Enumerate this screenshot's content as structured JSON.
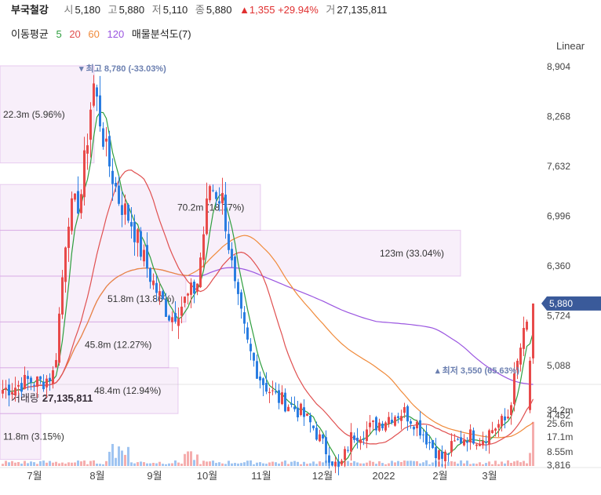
{
  "header": {
    "name": "부국철강",
    "open_label": "시",
    "open": "5,180",
    "high_label": "고",
    "high": "5,880",
    "low_label": "저",
    "low": "5,110",
    "close_label": "종",
    "close": "5,880",
    "change": "▲1,355 +29.94%",
    "volume_label": "거",
    "volume": "27,135,811"
  },
  "indicators": {
    "label": "이동평균",
    "ma": [
      {
        "period": "5",
        "color": "#2e9e3e"
      },
      {
        "period": "20",
        "color": "#e05050"
      },
      {
        "period": "60",
        "color": "#f08a3a"
      },
      {
        "period": "120",
        "color": "#9a55e0"
      }
    ],
    "profile_label": "매물분석도(7)"
  },
  "scale_mode": "Linear",
  "colors": {
    "up": "#e84a4a",
    "down": "#2a7de1",
    "profile": "#c27ad6",
    "price_tag": "#3a5a9a"
  },
  "chart_data": {
    "type": "candlestick",
    "y_ticks": [
      "8,904",
      "8,268",
      "7,632",
      "6,996",
      "6,360",
      "5,724",
      "5,088",
      "4,452",
      "3,816"
    ],
    "x_ticks": [
      "7월",
      "8월",
      "9월",
      "10월",
      "11월",
      "12월",
      "2022",
      "2월",
      "3월"
    ],
    "current_price": "5,880",
    "high_marker": "최고 8,780 (-33.03%)",
    "low_marker": "최저 3,550 (65.63%)",
    "volume_profile": [
      {
        "label": "22.3m (5.96%)",
        "price_lo": 7675,
        "price_hi": 8915
      },
      {
        "label": "70.2m (18.77%)",
        "price_lo": 6815,
        "price_hi": 7400
      },
      {
        "label": "123m (33.04%)",
        "price_lo": 6230,
        "price_hi": 6815
      },
      {
        "label": "51.8m (13.86%)",
        "price_lo": 5645,
        "price_hi": 6230
      },
      {
        "label": "45.8m (12.27%)",
        "price_lo": 5060,
        "price_hi": 5645
      },
      {
        "label": "48.4m (12.94%)",
        "price_lo": 4475,
        "price_hi": 5060
      },
      {
        "label": "11.8m (3.15%)",
        "price_lo": 3890,
        "price_hi": 4475
      }
    ],
    "volume": {
      "title": "거래량",
      "value": "27,135,811",
      "y_ticks": [
        "34.2m",
        "25.6m",
        "17.1m",
        "8.55m"
      ]
    },
    "ohlc_anchor_closes": [
      4780,
      4820,
      4900,
      4870,
      5000,
      7000,
      7200,
      8700,
      7800,
      7200,
      6900,
      6400,
      6000,
      5700,
      5900,
      6100,
      7400,
      7200,
      6000,
      5300,
      4900,
      4700,
      4600,
      4500,
      4300,
      4000,
      3750,
      4200,
      4250,
      4350,
      4450,
      4500,
      4350,
      4100,
      3900,
      4100,
      4200,
      4150,
      4300,
      4400,
      5300,
      5880
    ],
    "ma_legend": [
      "5",
      "20",
      "60",
      "120"
    ]
  }
}
